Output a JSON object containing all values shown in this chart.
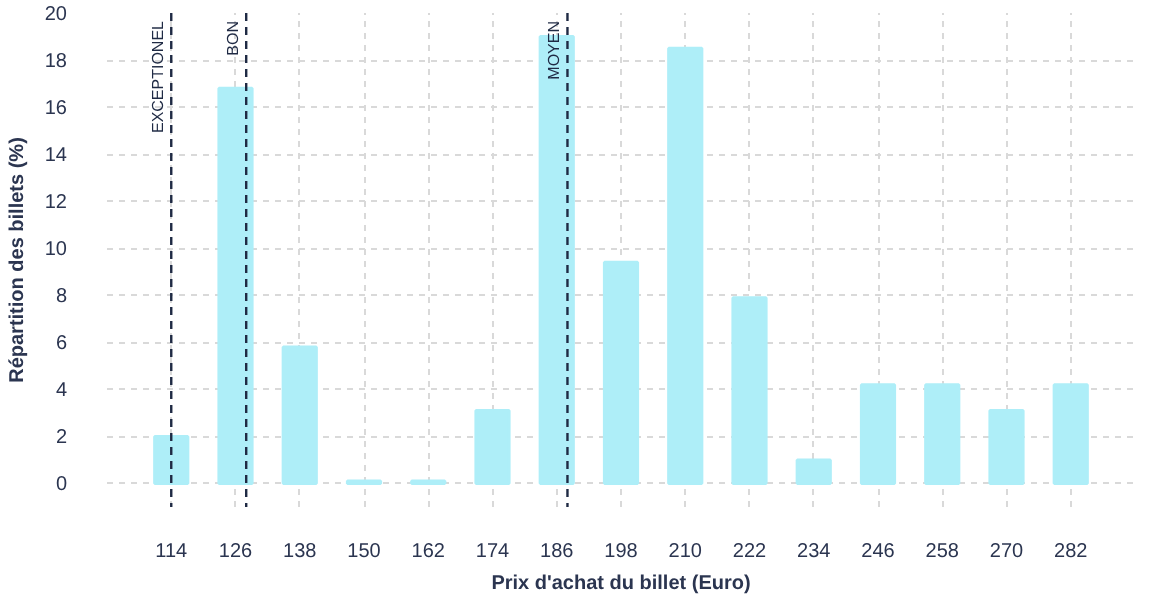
{
  "chart_data": {
    "type": "bar",
    "xlabel": "Prix d'achat du billet (Euro)",
    "ylabel": "Répartition des billets (%)",
    "x": [
      114,
      126,
      138,
      150,
      162,
      174,
      186,
      198,
      210,
      222,
      234,
      246,
      258,
      270,
      282
    ],
    "values": [
      2.0,
      16.8,
      5.8,
      0.1,
      0.1,
      3.1,
      19.0,
      9.4,
      18.5,
      7.9,
      1.0,
      4.2,
      4.2,
      3.1,
      4.2
    ],
    "color": "#aeeef8",
    "xlim": [
      102,
      294
    ],
    "xticks": [
      114,
      126,
      138,
      150,
      162,
      174,
      186,
      198,
      210,
      222,
      234,
      246,
      258,
      270,
      282
    ],
    "ylim": [
      -1,
      20
    ],
    "yticks": [
      0,
      2,
      4,
      6,
      8,
      10,
      12,
      14,
      16,
      18,
      20
    ],
    "grid": true,
    "ref_lines": [
      {
        "axis": "x",
        "value": 114,
        "label": "EXCEPTIONEL",
        "color": "#1f2a44",
        "line_style": "dashed"
      },
      {
        "axis": "x",
        "value": 128,
        "label": "BON",
        "color": "#1f2a44",
        "line_style": "dashed"
      },
      {
        "axis": "x",
        "value": 188,
        "label": "MOYEN",
        "color": "#1f2a44",
        "line_style": "dashed"
      }
    ]
  }
}
